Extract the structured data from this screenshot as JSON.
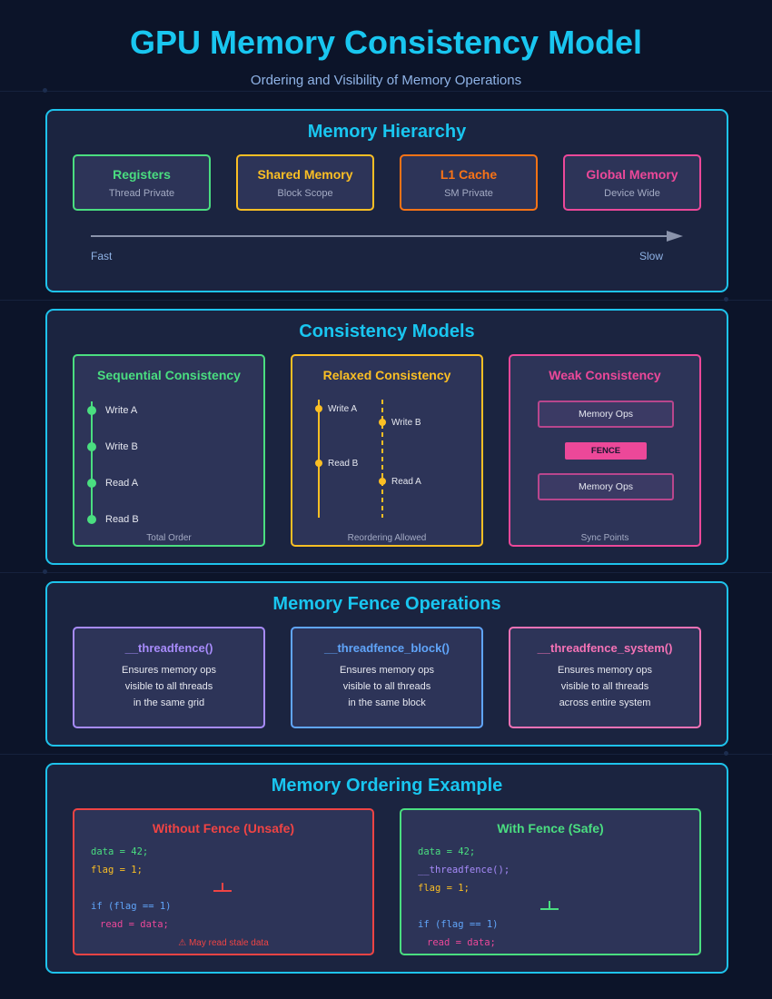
{
  "header": {
    "title": "GPU Memory Consistency Model",
    "subtitle": "Ordering and Visibility of Memory Operations"
  },
  "hierarchy": {
    "title": "Memory Hierarchy",
    "levels": [
      {
        "name": "Registers",
        "scope": "Thread Private",
        "color": "#4ade80"
      },
      {
        "name": "Shared Memory",
        "scope": "Block Scope",
        "color": "#fbbf24"
      },
      {
        "name": "L1 Cache",
        "scope": "SM Private",
        "color": "#f97316"
      },
      {
        "name": "Global Memory",
        "scope": "Device Wide",
        "color": "#ec4899"
      }
    ],
    "fast_label": "Fast",
    "slow_label": "Slow"
  },
  "models": {
    "title": "Consistency Models",
    "sequential": {
      "title": "Sequential Consistency",
      "ops": [
        "Write A",
        "Write B",
        "Read A",
        "Read B"
      ],
      "note": "Total Order",
      "color": "#4ade80"
    },
    "relaxed": {
      "title": "Relaxed Consistency",
      "thread1_ops": [
        "Write A",
        "Read B"
      ],
      "thread2_ops": [
        "Write B",
        "Read A"
      ],
      "note": "Reordering Allowed",
      "color": "#fbbf24"
    },
    "weak": {
      "title": "Weak Consistency",
      "ops_top": "Memory Ops",
      "fence": "FENCE",
      "ops_bottom": "Memory Ops",
      "note": "Sync Points",
      "color": "#ec4899"
    }
  },
  "fences": {
    "title": "Memory Fence Operations",
    "items": [
      {
        "name": "__threadfence()",
        "lines": [
          "Ensures memory ops",
          "visible to all threads",
          "in the same grid"
        ],
        "color": "#a78bfa"
      },
      {
        "name": "__threadfence_block()",
        "lines": [
          "Ensures memory ops",
          "visible to all threads",
          "in the same block"
        ],
        "color": "#60a5fa"
      },
      {
        "name": "__threadfence_system()",
        "lines": [
          "Ensures memory ops",
          "visible to all threads",
          "across entire system"
        ],
        "color": "#f472b6"
      }
    ]
  },
  "ordering": {
    "title": "Memory Ordering Example",
    "unsafe": {
      "title": "Without Fence (Unsafe)",
      "lines": [
        "data = 42;",
        "flag = 1;",
        "if (flag == 1)",
        "read = data;"
      ],
      "warning": "⚠ May read stale data",
      "color": "#ef4444"
    },
    "safe": {
      "title": "With Fence (Safe)",
      "lines": [
        "data = 42;",
        "__threadfence();",
        "flag = 1;",
        "if (flag == 1)",
        "read = data;"
      ],
      "color": "#4ade80"
    }
  }
}
